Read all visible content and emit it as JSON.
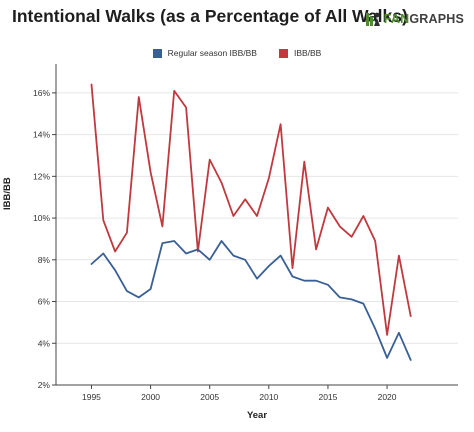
{
  "header": {
    "title": "Intentional Walks (as a Percentage of All Walks)",
    "logo_prefix": "",
    "logo_accent": "FAN",
    "logo_rest": "GRAPHS",
    "accent_color": "#4f8c2f"
  },
  "chart_data": {
    "type": "line",
    "title": "Intentional Walks (as a Percentage of All Walks)",
    "xlabel": "Year",
    "ylabel": "IBB/BB",
    "xlim": [
      1992,
      2026
    ],
    "ylim": [
      2,
      17
    ],
    "x_ticks": [
      1995,
      2000,
      2005,
      2010,
      2015,
      2020
    ],
    "y_ticks": [
      2,
      4,
      6,
      8,
      10,
      12,
      14,
      16
    ],
    "y_tick_format": "percent",
    "grid": "horizontal",
    "legend_position": "top",
    "series": [
      {
        "name": "Regular season IBB/BB",
        "color": "#3a5f94",
        "x": [
          1995,
          1996,
          1997,
          1998,
          1999,
          2000,
          2001,
          2002,
          2003,
          2004,
          2005,
          2006,
          2007,
          2008,
          2009,
          2010,
          2011,
          2012,
          2013,
          2014,
          2015,
          2016,
          2017,
          2018,
          2019,
          2020,
          2021,
          2022
        ],
        "values": [
          7.8,
          8.3,
          7.5,
          6.5,
          6.2,
          6.6,
          8.8,
          8.9,
          8.3,
          8.5,
          8.0,
          8.9,
          8.2,
          8.0,
          7.1,
          7.7,
          8.2,
          7.2,
          7.0,
          7.0,
          6.8,
          6.2,
          6.1,
          5.9,
          4.7,
          3.3,
          4.5,
          3.2
        ]
      },
      {
        "name": "IBB/BB",
        "color": "#c0393f",
        "x": [
          1995,
          1996,
          1997,
          1998,
          1999,
          2000,
          2001,
          2002,
          2003,
          2004,
          2005,
          2006,
          2007,
          2008,
          2009,
          2010,
          2011,
          2012,
          2013,
          2014,
          2015,
          2016,
          2017,
          2018,
          2019,
          2020,
          2021,
          2022
        ],
        "values": [
          16.4,
          9.9,
          8.4,
          9.3,
          15.8,
          12.2,
          9.6,
          16.1,
          15.3,
          8.4,
          12.8,
          11.7,
          10.1,
          10.9,
          10.1,
          11.9,
          14.5,
          7.6,
          12.7,
          8.5,
          10.5,
          9.6,
          9.1,
          10.1,
          8.9,
          4.4,
          8.2,
          5.3
        ]
      }
    ]
  }
}
